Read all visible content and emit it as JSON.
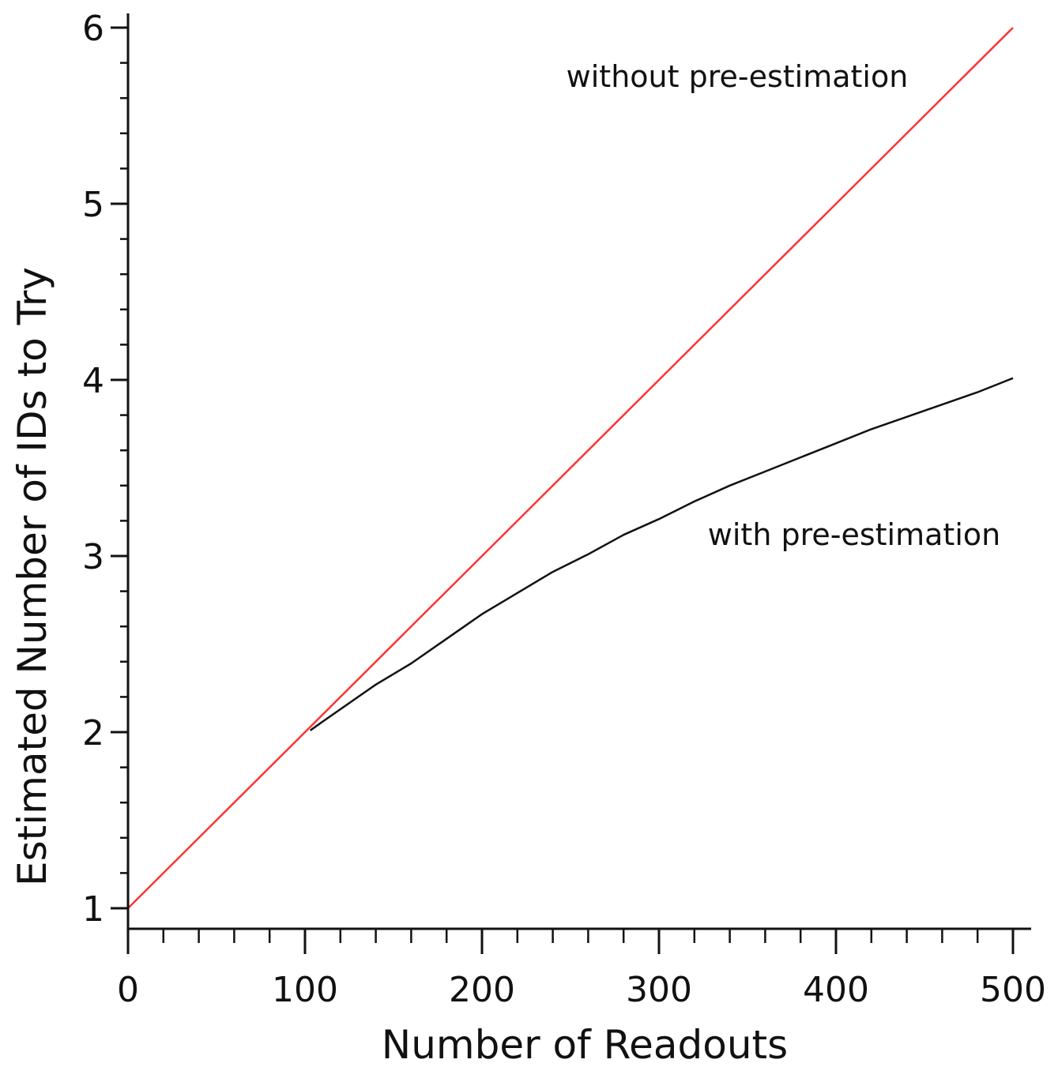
{
  "chart_data": {
    "type": "line",
    "xlabel": "Number of Readouts",
    "ylabel": "Estimated Number of IDs to Try",
    "xlim": [
      0,
      500
    ],
    "ylim": [
      1,
      6
    ],
    "x_ticks": [
      0,
      100,
      200,
      300,
      400,
      500
    ],
    "y_ticks": [
      1,
      2,
      3,
      4,
      5,
      6
    ],
    "x_minor_step": 20,
    "y_minor_step": 0.2,
    "grid": false,
    "series": [
      {
        "annotation": "without pre-estimation",
        "color": "#ff3333",
        "x": [
          0,
          100,
          170,
          500
        ],
        "y": [
          1.0,
          2.0,
          2.7,
          6.0
        ]
      },
      {
        "annotation": "with pre-estimation",
        "color": "#111111",
        "x": [
          103,
          110,
          120,
          130,
          140,
          150,
          160,
          170,
          180,
          190,
          200,
          220,
          240,
          260,
          280,
          300,
          320,
          340,
          360,
          380,
          400,
          420,
          440,
          460,
          480,
          500
        ],
        "y": [
          2.01,
          2.06,
          2.13,
          2.2,
          2.27,
          2.33,
          2.39,
          2.46,
          2.53,
          2.6,
          2.67,
          2.79,
          2.91,
          3.01,
          3.12,
          3.21,
          3.31,
          3.4,
          3.48,
          3.56,
          3.64,
          3.72,
          3.79,
          3.86,
          3.93,
          4.01
        ]
      }
    ]
  }
}
